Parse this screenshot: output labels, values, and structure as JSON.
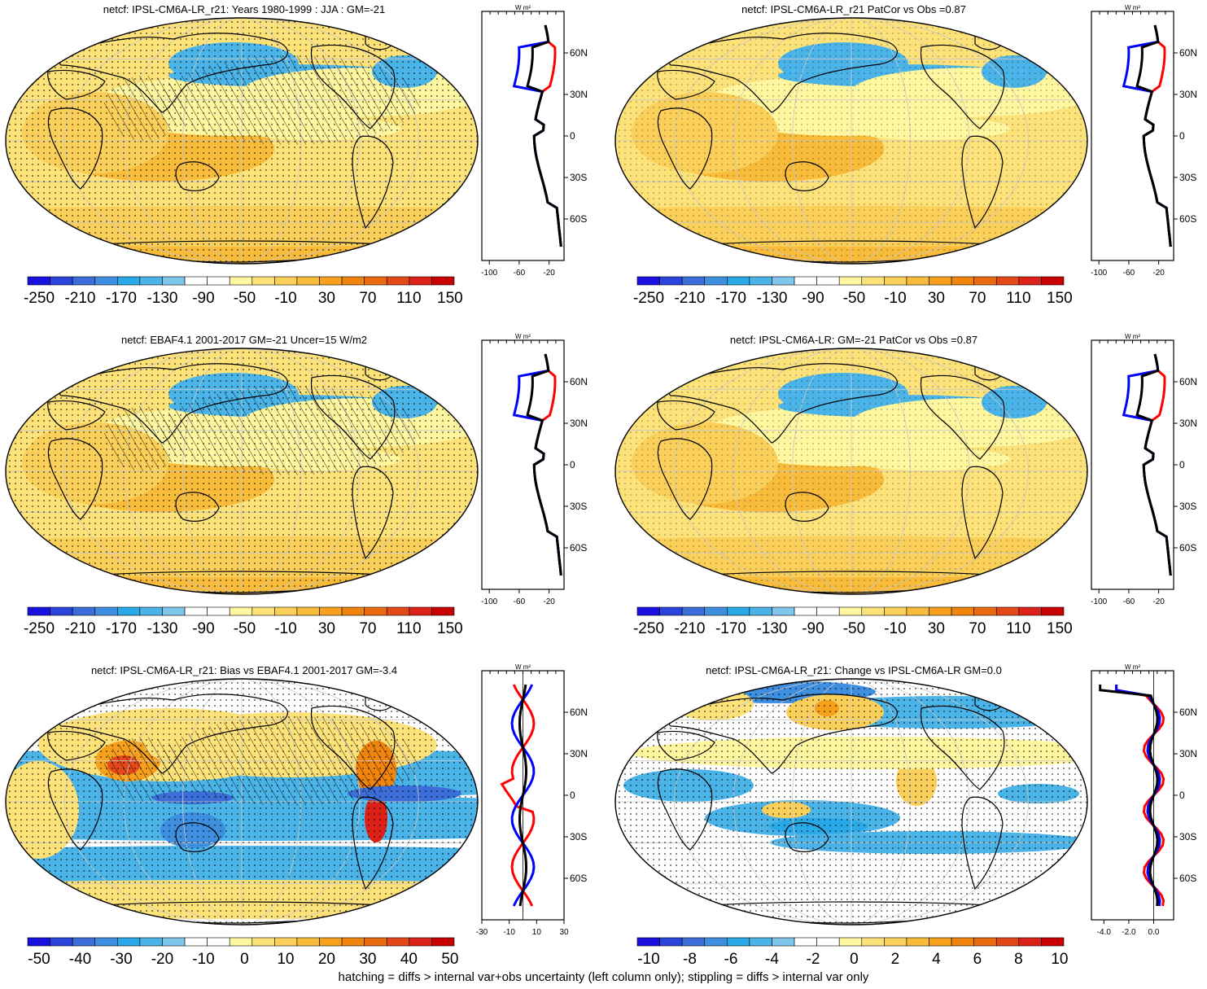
{
  "panels": [
    {
      "title": "netcf: IPSL-CM6A-LR_r21: Years 1980-1999 : JJA : GM=-21",
      "theme": "mean",
      "hatch": true,
      "cb": "abs",
      "pf": "abs",
      "profile": {
        "xticks": [
          "-100",
          "-60",
          "-20"
        ],
        "xmin": -110,
        "xmax": 0
      }
    },
    {
      "title": "netcf: IPSL-CM6A-LR_r21 PatCor vs Obs =0.87",
      "theme": "mean",
      "hatch": false,
      "cb": "abs",
      "pf": "abs",
      "profile": {
        "xticks": [
          "-100",
          "-60",
          "-20"
        ],
        "xmin": -110,
        "xmax": 0
      }
    },
    {
      "title": "netcf: EBAF4.1 2001-2017 GM=-21 Uncer=15 W/m2",
      "theme": "mean",
      "hatch": true,
      "cb": "abs",
      "pf": "abs",
      "profile": {
        "xticks": [
          "-100",
          "-60",
          "-20"
        ],
        "xmin": -110,
        "xmax": 0
      }
    },
    {
      "title": "netcf: IPSL-CM6A-LR: GM=-21 PatCor vs Obs =0.87",
      "theme": "mean",
      "hatch": false,
      "cb": "abs",
      "pf": "abs",
      "profile": {
        "xticks": [
          "-100",
          "-60",
          "-20"
        ],
        "xmin": -110,
        "xmax": 0
      }
    },
    {
      "title": "netcf: IPSL-CM6A-LR_r21: Bias vs EBAF4.1 2001-2017 GM=-3.4",
      "theme": "bias",
      "hatch": true,
      "cb": "bias",
      "pf": "bias",
      "profile": {
        "xticks": [
          "-30",
          "-10",
          "10",
          "30"
        ],
        "xmin": -30,
        "xmax": 30
      }
    },
    {
      "title": "netcf: IPSL-CM6A-LR_r21: Change vs IPSL-CM6A-LR GM=0.0",
      "theme": "change",
      "hatch": false,
      "cb": "change",
      "pf": "change",
      "profile": {
        "xticks": [
          "-4.0",
          "-2.0",
          "0.0"
        ],
        "xmin": -5,
        "xmax": 1.6
      }
    }
  ],
  "colorbars": {
    "abs": {
      "labels": [
        "-250",
        "-210",
        "-170",
        "-130",
        "-90",
        "-50",
        "-10",
        "30",
        "70",
        "110",
        "150"
      ]
    },
    "bias": {
      "labels": [
        "-50",
        "-40",
        "-30",
        "-20",
        "-10",
        "0",
        "10",
        "20",
        "30",
        "40",
        "50"
      ]
    },
    "change": {
      "labels": [
        "-10",
        "-8",
        "-6",
        "-4",
        "-2",
        "0",
        "2",
        "4",
        "6",
        "8",
        "10"
      ]
    }
  },
  "palette": [
    "#1a10e0",
    "#2b44dc",
    "#3b6ed8",
    "#3f8fe0",
    "#2aa9e8",
    "#4ab4e8",
    "#7ec6ec",
    "#ffffff",
    "#ffffff",
    "#fff6a0",
    "#fde27a",
    "#fbd05a",
    "#f9bc3a",
    "#f7a01c",
    "#f1840c",
    "#ea6a10",
    "#e54818",
    "#dc2218",
    "#c80000"
  ],
  "profile_units": "W m²",
  "lat_labels": [
    "60N",
    "30N",
    "0",
    "30S",
    "60S"
  ],
  "profile_series_colors": {
    "model": "#0000ff",
    "obs": "#ff0000",
    "ref": "#000000"
  },
  "footer": "hatching = diffs > internal var+obs uncertainty (left column only); stippling = diffs > internal var only"
}
